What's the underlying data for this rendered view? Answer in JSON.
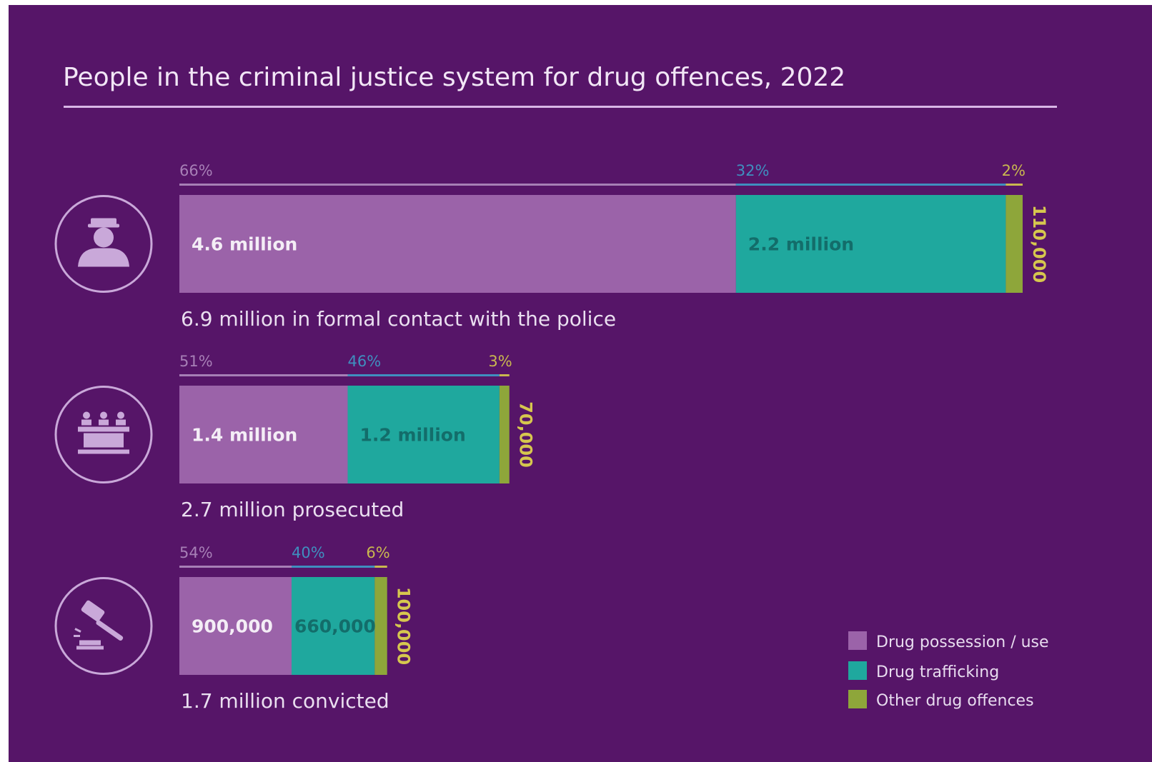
{
  "chart_data": {
    "type": "bar",
    "title": "People in the criminal justice system for drug offences, 2022",
    "stacked": true,
    "orientation": "horizontal",
    "unit_scale_total_max": 6900000,
    "series": [
      {
        "name": "Drug possession / use",
        "color": "#9b63a9"
      },
      {
        "name": "Drug trafficking",
        "color": "#1fa89e"
      },
      {
        "name": "Other drug offences",
        "color": "#8ea63a"
      }
    ],
    "rows": [
      {
        "icon": "police-officer-icon",
        "caption": "6.9 million in formal contact with the police",
        "total": 6900000,
        "percents": [
          66,
          32,
          2
        ],
        "percent_labels": [
          "66%",
          "32%",
          "2%"
        ],
        "values": [
          4600000,
          2200000,
          110000
        ],
        "value_labels": [
          "4.6 million",
          "2.2 million",
          "110,000"
        ]
      },
      {
        "icon": "court-bench-icon",
        "caption": "2.7 million prosecuted",
        "total": 2700000,
        "percents": [
          51,
          46,
          3
        ],
        "percent_labels": [
          "51%",
          "46%",
          "3%"
        ],
        "values": [
          1400000,
          1200000,
          70000
        ],
        "value_labels": [
          "1.4 million",
          "1.2 million",
          "70,000"
        ]
      },
      {
        "icon": "gavel-icon",
        "caption": "1.7 million convicted",
        "total": 1700000,
        "percents": [
          54,
          40,
          6
        ],
        "percent_labels": [
          "54%",
          "40%",
          "6%"
        ],
        "values": [
          900000,
          660000,
          100000
        ],
        "value_labels": [
          "900,000",
          "660,000",
          "100,000"
        ]
      }
    ],
    "legend_position": "bottom-right"
  },
  "colors": {
    "background": "#561568",
    "possession": "#9b63a9",
    "trafficking": "#1fa89e",
    "other": "#8ea63a",
    "possession_pct_text": "#a77fb6",
    "trafficking_pct_text": "#3f8fbf",
    "other_pct_text": "#c9b84f",
    "trafficking_value_text": "#136d6a",
    "other_value_text": "#d6c74e"
  }
}
